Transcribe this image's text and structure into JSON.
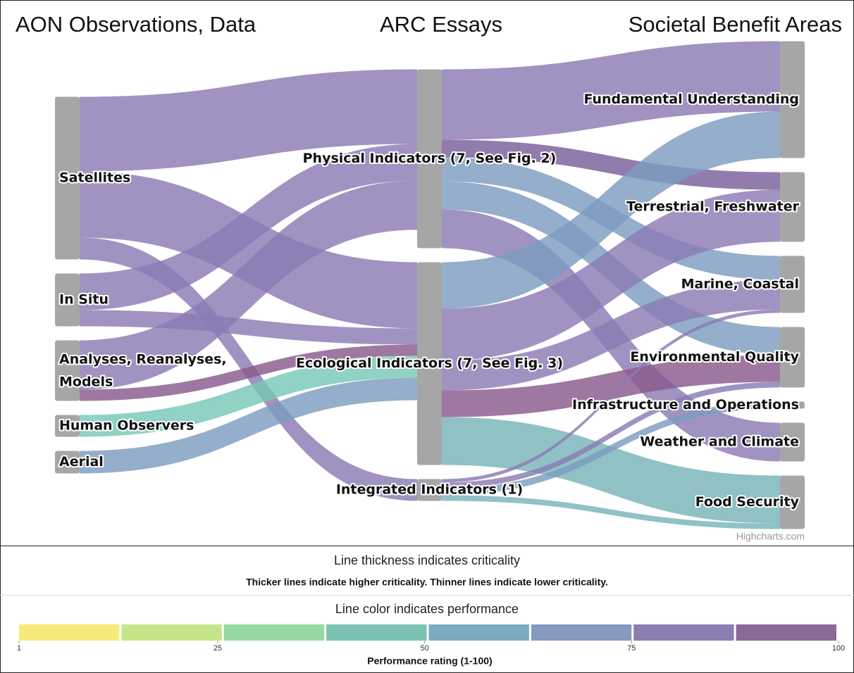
{
  "chart_data": {
    "type": "sankey",
    "columns": [
      "AON Observations, Data",
      "ARC Essays",
      "Societal Benefit Areas"
    ],
    "nodes": [
      {
        "name": "Satellites",
        "column": 0
      },
      {
        "name": "In Situ",
        "column": 0
      },
      {
        "name": "Analyses, Reanalyses, Models",
        "column": 0
      },
      {
        "name": "Human Observers",
        "column": 0
      },
      {
        "name": "Aerial",
        "column": 0
      },
      {
        "name": "Physical Indicators (7, See Fig. 2)",
        "column": 1
      },
      {
        "name": "Ecological Indicators (7, See Fig. 3)",
        "column": 1
      },
      {
        "name": "Integrated Indicators (1)",
        "column": 1
      },
      {
        "name": "Fundamental Understanding",
        "column": 2
      },
      {
        "name": "Terrestrial, Freshwater",
        "column": 2
      },
      {
        "name": "Marine, Coastal",
        "column": 2
      },
      {
        "name": "Environmental Quality",
        "column": 2
      },
      {
        "name": "Infrastructure and Operations",
        "column": 2
      },
      {
        "name": "Weather and Climate",
        "column": 2
      },
      {
        "name": "Food Security",
        "column": 2
      }
    ],
    "links": [
      {
        "from": "Satellites",
        "to": "Physical Indicators (7, See Fig. 2)",
        "weight": 106,
        "color": "#8b7bb5"
      },
      {
        "from": "Satellites",
        "to": "Ecological Indicators (7, See Fig. 3)",
        "weight": 94,
        "color": "#8b7bb5"
      },
      {
        "from": "Satellites",
        "to": "Integrated Indicators (1)",
        "weight": 31,
        "color": "#8b7bb5"
      },
      {
        "from": "In Situ",
        "to": "Physical Indicators (7, See Fig. 2)",
        "weight": 52,
        "color": "#8b7bb5"
      },
      {
        "from": "In Situ",
        "to": "Ecological Indicators (7, See Fig. 3)",
        "weight": 23,
        "color": "#8b7bb5"
      },
      {
        "from": "Analyses, Reanalyses, Models",
        "to": "Physical Indicators (7, See Fig. 2)",
        "weight": 70,
        "color": "#8b7bb5"
      },
      {
        "from": "Analyses, Reanalyses, Models",
        "to": "Ecological Indicators (7, See Fig. 3)",
        "weight": 16,
        "color": "#8a5a8c"
      },
      {
        "from": "Human Observers",
        "to": "Ecological Indicators (7, See Fig. 3)",
        "weight": 31,
        "color": "#78c8b6"
      },
      {
        "from": "Aerial",
        "to": "Ecological Indicators (7, See Fig. 3)",
        "weight": 32,
        "color": "#7d9cbf"
      },
      {
        "from": "Physical Indicators (7, See Fig. 2)",
        "to": "Fundamental Understanding",
        "weight": 100,
        "color": "#8b7bb5"
      },
      {
        "from": "Physical Indicators (7, See Fig. 2)",
        "to": "Terrestrial, Freshwater",
        "weight": 25,
        "color": "#7a5f9c"
      },
      {
        "from": "Physical Indicators (7, See Fig. 2)",
        "to": "Marine, Coastal",
        "weight": 34,
        "color": "#7d9cbf"
      },
      {
        "from": "Physical Indicators (7, See Fig. 2)",
        "to": "Environmental Quality",
        "weight": 40,
        "color": "#7d9cbf"
      },
      {
        "from": "Physical Indicators (7, See Fig. 2)",
        "to": "Weather and Climate",
        "weight": 55,
        "color": "#8b7bb5"
      },
      {
        "from": "Ecological Indicators (7, See Fig. 3)",
        "to": "Fundamental Understanding",
        "weight": 66,
        "color": "#7d9cbf"
      },
      {
        "from": "Ecological Indicators (7, See Fig. 3)",
        "to": "Terrestrial, Freshwater",
        "weight": 74,
        "color": "#8b7bb5"
      },
      {
        "from": "Ecological Indicators (7, See Fig. 3)",
        "to": "Marine, Coastal",
        "weight": 42,
        "color": "#8b7bb5"
      },
      {
        "from": "Ecological Indicators (7, See Fig. 3)",
        "to": "Environmental Quality",
        "weight": 38,
        "color": "#8a5a8c"
      },
      {
        "from": "Ecological Indicators (7, See Fig. 3)",
        "to": "Food Security",
        "weight": 68,
        "color": "#78b4b8"
      },
      {
        "from": "Integrated Indicators (1)",
        "to": "Marine, Coastal",
        "weight": 5,
        "color": "#8b7bb5"
      },
      {
        "from": "Integrated Indicators (1)",
        "to": "Environmental Quality",
        "weight": 8,
        "color": "#8b7bb5"
      },
      {
        "from": "Integrated Indicators (1)",
        "to": "Infrastructure and Operations",
        "weight": 10,
        "color": "#7d9cbf"
      },
      {
        "from": "Integrated Indicators (1)",
        "to": "Food Security",
        "weight": 8,
        "color": "#78b4b8"
      }
    ],
    "node_color": "#a6a6a6",
    "credits": "Highcharts.com",
    "legend": {
      "thickness_title": "Line thickness indicates criticality",
      "thickness_note": "Thicker lines indicate higher criticality. Thinner lines indicate lower criticality.",
      "color_title": "Line color indicates performance",
      "colors": [
        "#f6eb7a",
        "#c4e689",
        "#97d8a4",
        "#7cc2b3",
        "#7caac0",
        "#8699be",
        "#8c7db2",
        "#8b6897"
      ],
      "xlim": [
        1,
        100
      ],
      "xticks": [
        1,
        25,
        50,
        75,
        100
      ],
      "axis_label": "Performance rating (1-100)"
    }
  }
}
